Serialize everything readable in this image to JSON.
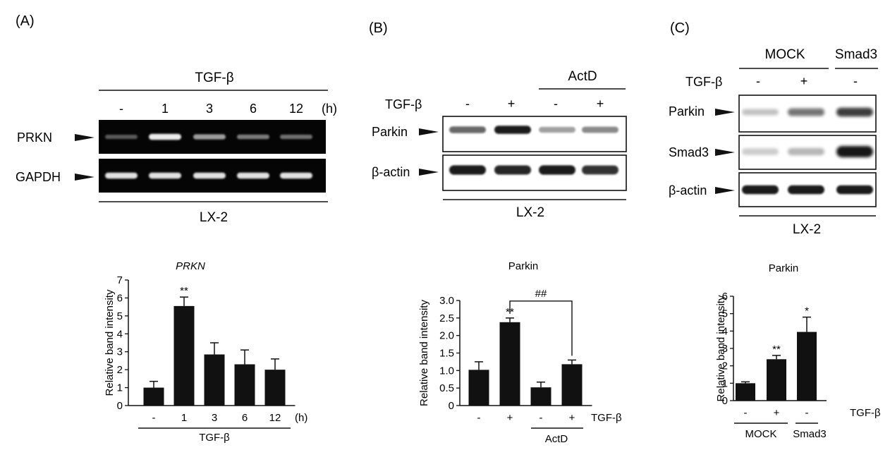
{
  "colors": {
    "ink": "#111111",
    "gel": "#050505",
    "band_gel": "#f2f2f2",
    "band_blot": "#161616"
  },
  "panel_A": {
    "label": "(A)",
    "treatment": "TGF-β",
    "lanes": [
      "-",
      "1",
      "3",
      "6",
      "12"
    ],
    "unit": "(h)",
    "rows": [
      "PRKN",
      "GAPDH"
    ],
    "cell_line": "LX-2",
    "band_intensity": {
      "PRKN": [
        0.25,
        0.9,
        0.55,
        0.4,
        0.35
      ],
      "GAPDH": [
        0.85,
        0.85,
        0.85,
        0.85,
        0.85
      ]
    }
  },
  "panel_B": {
    "label": "(B)",
    "treatment": "TGF-β",
    "lanes": [
      "-",
      "+",
      "-",
      "+"
    ],
    "group_label": "ActD",
    "rows": [
      "Parkin",
      "β-actin"
    ],
    "cell_line": "LX-2",
    "band_intensity": {
      "Parkin": [
        0.55,
        0.9,
        0.3,
        0.4
      ],
      "β-actin": [
        0.9,
        0.85,
        0.9,
        0.8
      ]
    }
  },
  "panel_C": {
    "label": "(C)",
    "groups": [
      "MOCK",
      "Smad3"
    ],
    "treatment": "TGF-β",
    "lanes": [
      "-",
      "+",
      "-"
    ],
    "rows": [
      "Parkin",
      "Smad3",
      "β-actin"
    ],
    "cell_line": "LX-2",
    "band_intensity": {
      "Parkin": [
        0.15,
        0.5,
        0.75
      ],
      "Smad3": [
        0.1,
        0.2,
        1.0
      ],
      "β-actin": [
        0.9,
        0.9,
        0.9
      ]
    }
  },
  "chart_data": [
    {
      "type": "bar",
      "title": "PRKN",
      "ylabel": "Relative band intensity",
      "categories": [
        "-",
        "1",
        "3",
        "6",
        "12"
      ],
      "x_unit": "(h)",
      "group_label": "TGF-β",
      "values": [
        1.0,
        5.55,
        2.85,
        2.3,
        2.0
      ],
      "errors": [
        0.35,
        0.5,
        0.65,
        0.8,
        0.6
      ],
      "annotations": [
        "",
        "**",
        "",
        "",
        ""
      ],
      "ylim": [
        0,
        7
      ],
      "yticks": [
        "0",
        "1",
        "2",
        "3",
        "4",
        "5",
        "6",
        "7"
      ]
    },
    {
      "type": "bar",
      "title": "Parkin",
      "ylabel": "Relative band intensity",
      "categories": [
        "-",
        "+",
        "-",
        "+"
      ],
      "x_unit": "TGF-β",
      "group_label": "ActD",
      "values": [
        1.02,
        2.38,
        0.52,
        1.18
      ],
      "errors": [
        0.23,
        0.12,
        0.15,
        0.12
      ],
      "annotations": [
        "",
        "**",
        "",
        ""
      ],
      "bracket_label": "##",
      "ylim": [
        0,
        3.0
      ],
      "yticks": [
        "0",
        "0.5",
        "1.0",
        "1.5",
        "2.0",
        "2.5",
        "3.0"
      ]
    },
    {
      "type": "bar",
      "title": "Parkin",
      "ylabel": "Relative band intensity",
      "categories": [
        "-",
        "+",
        "-"
      ],
      "x_unit": "TGF-β",
      "groups": [
        "MOCK",
        "Smad3"
      ],
      "values": [
        1.0,
        2.38,
        3.95
      ],
      "errors": [
        0.08,
        0.22,
        0.85
      ],
      "annotations": [
        "",
        "**",
        "*"
      ],
      "ylim": [
        0,
        6
      ],
      "yticks": [
        "0",
        "1",
        "2",
        "3",
        "4",
        "5",
        "6"
      ]
    }
  ]
}
